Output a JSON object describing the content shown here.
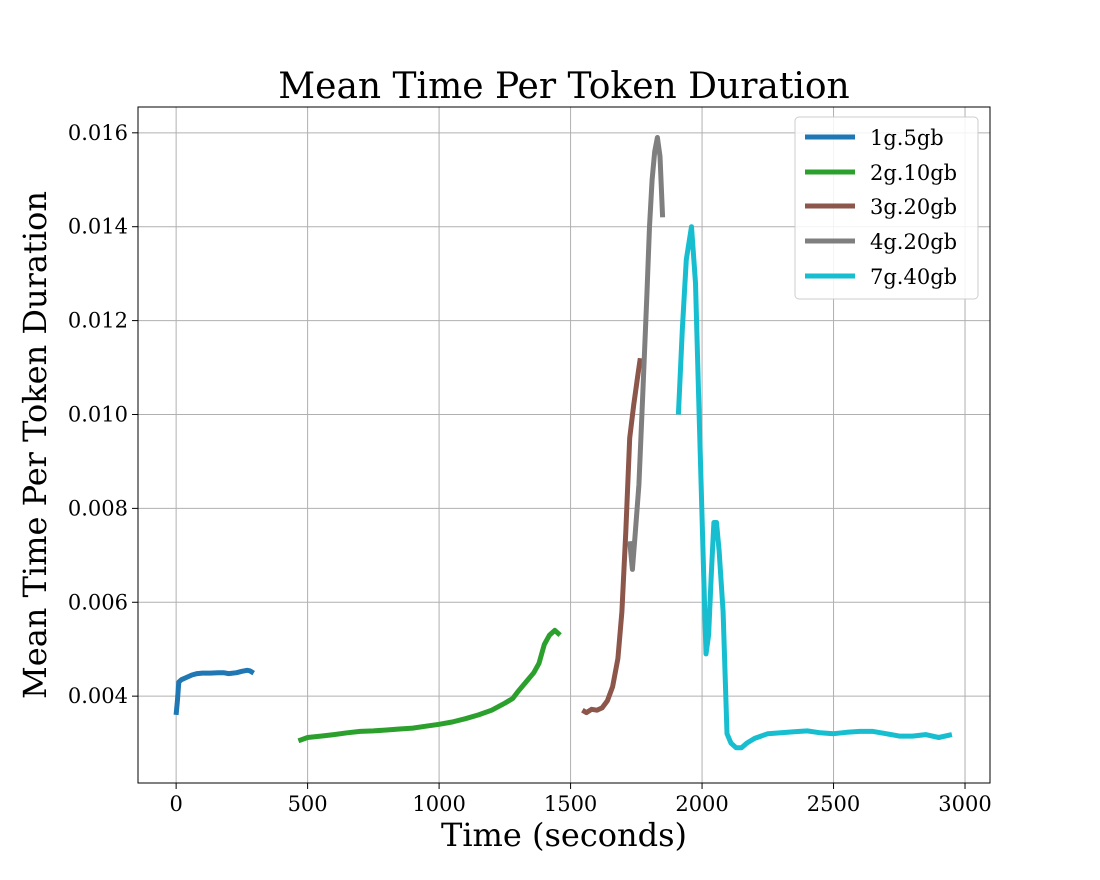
{
  "chart_data": {
    "type": "line",
    "title": "Mean Time Per Token Duration",
    "xlabel": "Time (seconds)",
    "ylabel": "Mean Time Per Token Duration",
    "xlim": [
      -145,
      3095
    ],
    "ylim": [
      0.00215,
      0.01655
    ],
    "x_ticks": [
      0,
      500,
      1000,
      1500,
      2000,
      2500,
      3000
    ],
    "y_ticks": [
      0.004,
      0.006,
      0.008,
      0.01,
      0.012,
      0.014,
      0.016
    ],
    "x_tick_labels": [
      "0",
      "500",
      "1000",
      "1500",
      "2000",
      "2500",
      "3000"
    ],
    "y_tick_labels": [
      "0.004",
      "0.006",
      "0.008",
      "0.010",
      "0.012",
      "0.014",
      "0.016"
    ],
    "grid": true,
    "legend_position": "top-right",
    "series": [
      {
        "name": "1g.5gb",
        "color": "#1f77b4",
        "x": [
          0,
          5,
          10,
          20,
          40,
          60,
          80,
          100,
          130,
          160,
          180,
          200,
          230,
          250,
          270,
          280,
          295
        ],
        "y": [
          0.0036,
          0.0039,
          0.0043,
          0.00435,
          0.0044,
          0.00445,
          0.00448,
          0.00449,
          0.00449,
          0.0045,
          0.0045,
          0.00448,
          0.0045,
          0.00453,
          0.00455,
          0.00454,
          0.00449
        ]
      },
      {
        "name": "2g.10gb",
        "color": "#2ca02c",
        "x": [
          465,
          500,
          550,
          600,
          650,
          700,
          750,
          800,
          850,
          900,
          950,
          1000,
          1050,
          1100,
          1150,
          1200,
          1250,
          1280,
          1300,
          1330,
          1360,
          1380,
          1400,
          1420,
          1440,
          1460
        ],
        "y": [
          0.00305,
          0.00312,
          0.00315,
          0.00318,
          0.00322,
          0.00325,
          0.00326,
          0.00328,
          0.0033,
          0.00332,
          0.00336,
          0.0034,
          0.00345,
          0.00352,
          0.0036,
          0.0037,
          0.00385,
          0.00395,
          0.0041,
          0.0043,
          0.0045,
          0.0047,
          0.0051,
          0.0053,
          0.0054,
          0.0053
        ]
      },
      {
        "name": "3g.20gb",
        "color": "#8c564b",
        "x": [
          1545,
          1560,
          1580,
          1600,
          1620,
          1640,
          1660,
          1680,
          1695,
          1710,
          1725,
          1740,
          1755,
          1765
        ],
        "y": [
          0.0037,
          0.00365,
          0.00372,
          0.0037,
          0.00375,
          0.0039,
          0.0042,
          0.0048,
          0.0058,
          0.0075,
          0.0095,
          0.0102,
          0.0108,
          0.0112
        ]
      },
      {
        "name": "4g.20gb",
        "color": "#7f7f7f",
        "x": [
          1725,
          1735,
          1745,
          1760,
          1775,
          1790,
          1800,
          1810,
          1820,
          1830,
          1840,
          1850
        ],
        "y": [
          0.0073,
          0.0067,
          0.0074,
          0.0085,
          0.0105,
          0.0125,
          0.014,
          0.015,
          0.0156,
          0.0159,
          0.0155,
          0.0142
        ]
      },
      {
        "name": "7g.40gb",
        "color": "#17becf",
        "x": [
          1910,
          1925,
          1940,
          1960,
          1975,
          1990,
          2005,
          2015,
          2025,
          2035,
          2045,
          2055,
          2065,
          2080,
          2095,
          2110,
          2130,
          2150,
          2170,
          2200,
          2250,
          2300,
          2350,
          2400,
          2450,
          2500,
          2550,
          2600,
          2650,
          2700,
          2750,
          2800,
          2850,
          2900,
          2950
        ],
        "y": [
          0.01,
          0.0118,
          0.0133,
          0.014,
          0.0128,
          0.0098,
          0.0068,
          0.0049,
          0.0053,
          0.0066,
          0.0077,
          0.0077,
          0.0071,
          0.0058,
          0.0032,
          0.003,
          0.0029,
          0.0029,
          0.003,
          0.0031,
          0.0032,
          0.00322,
          0.00324,
          0.00326,
          0.00322,
          0.0032,
          0.00323,
          0.00325,
          0.00325,
          0.0032,
          0.00315,
          0.00315,
          0.00318,
          0.00312,
          0.00318
        ]
      }
    ]
  }
}
